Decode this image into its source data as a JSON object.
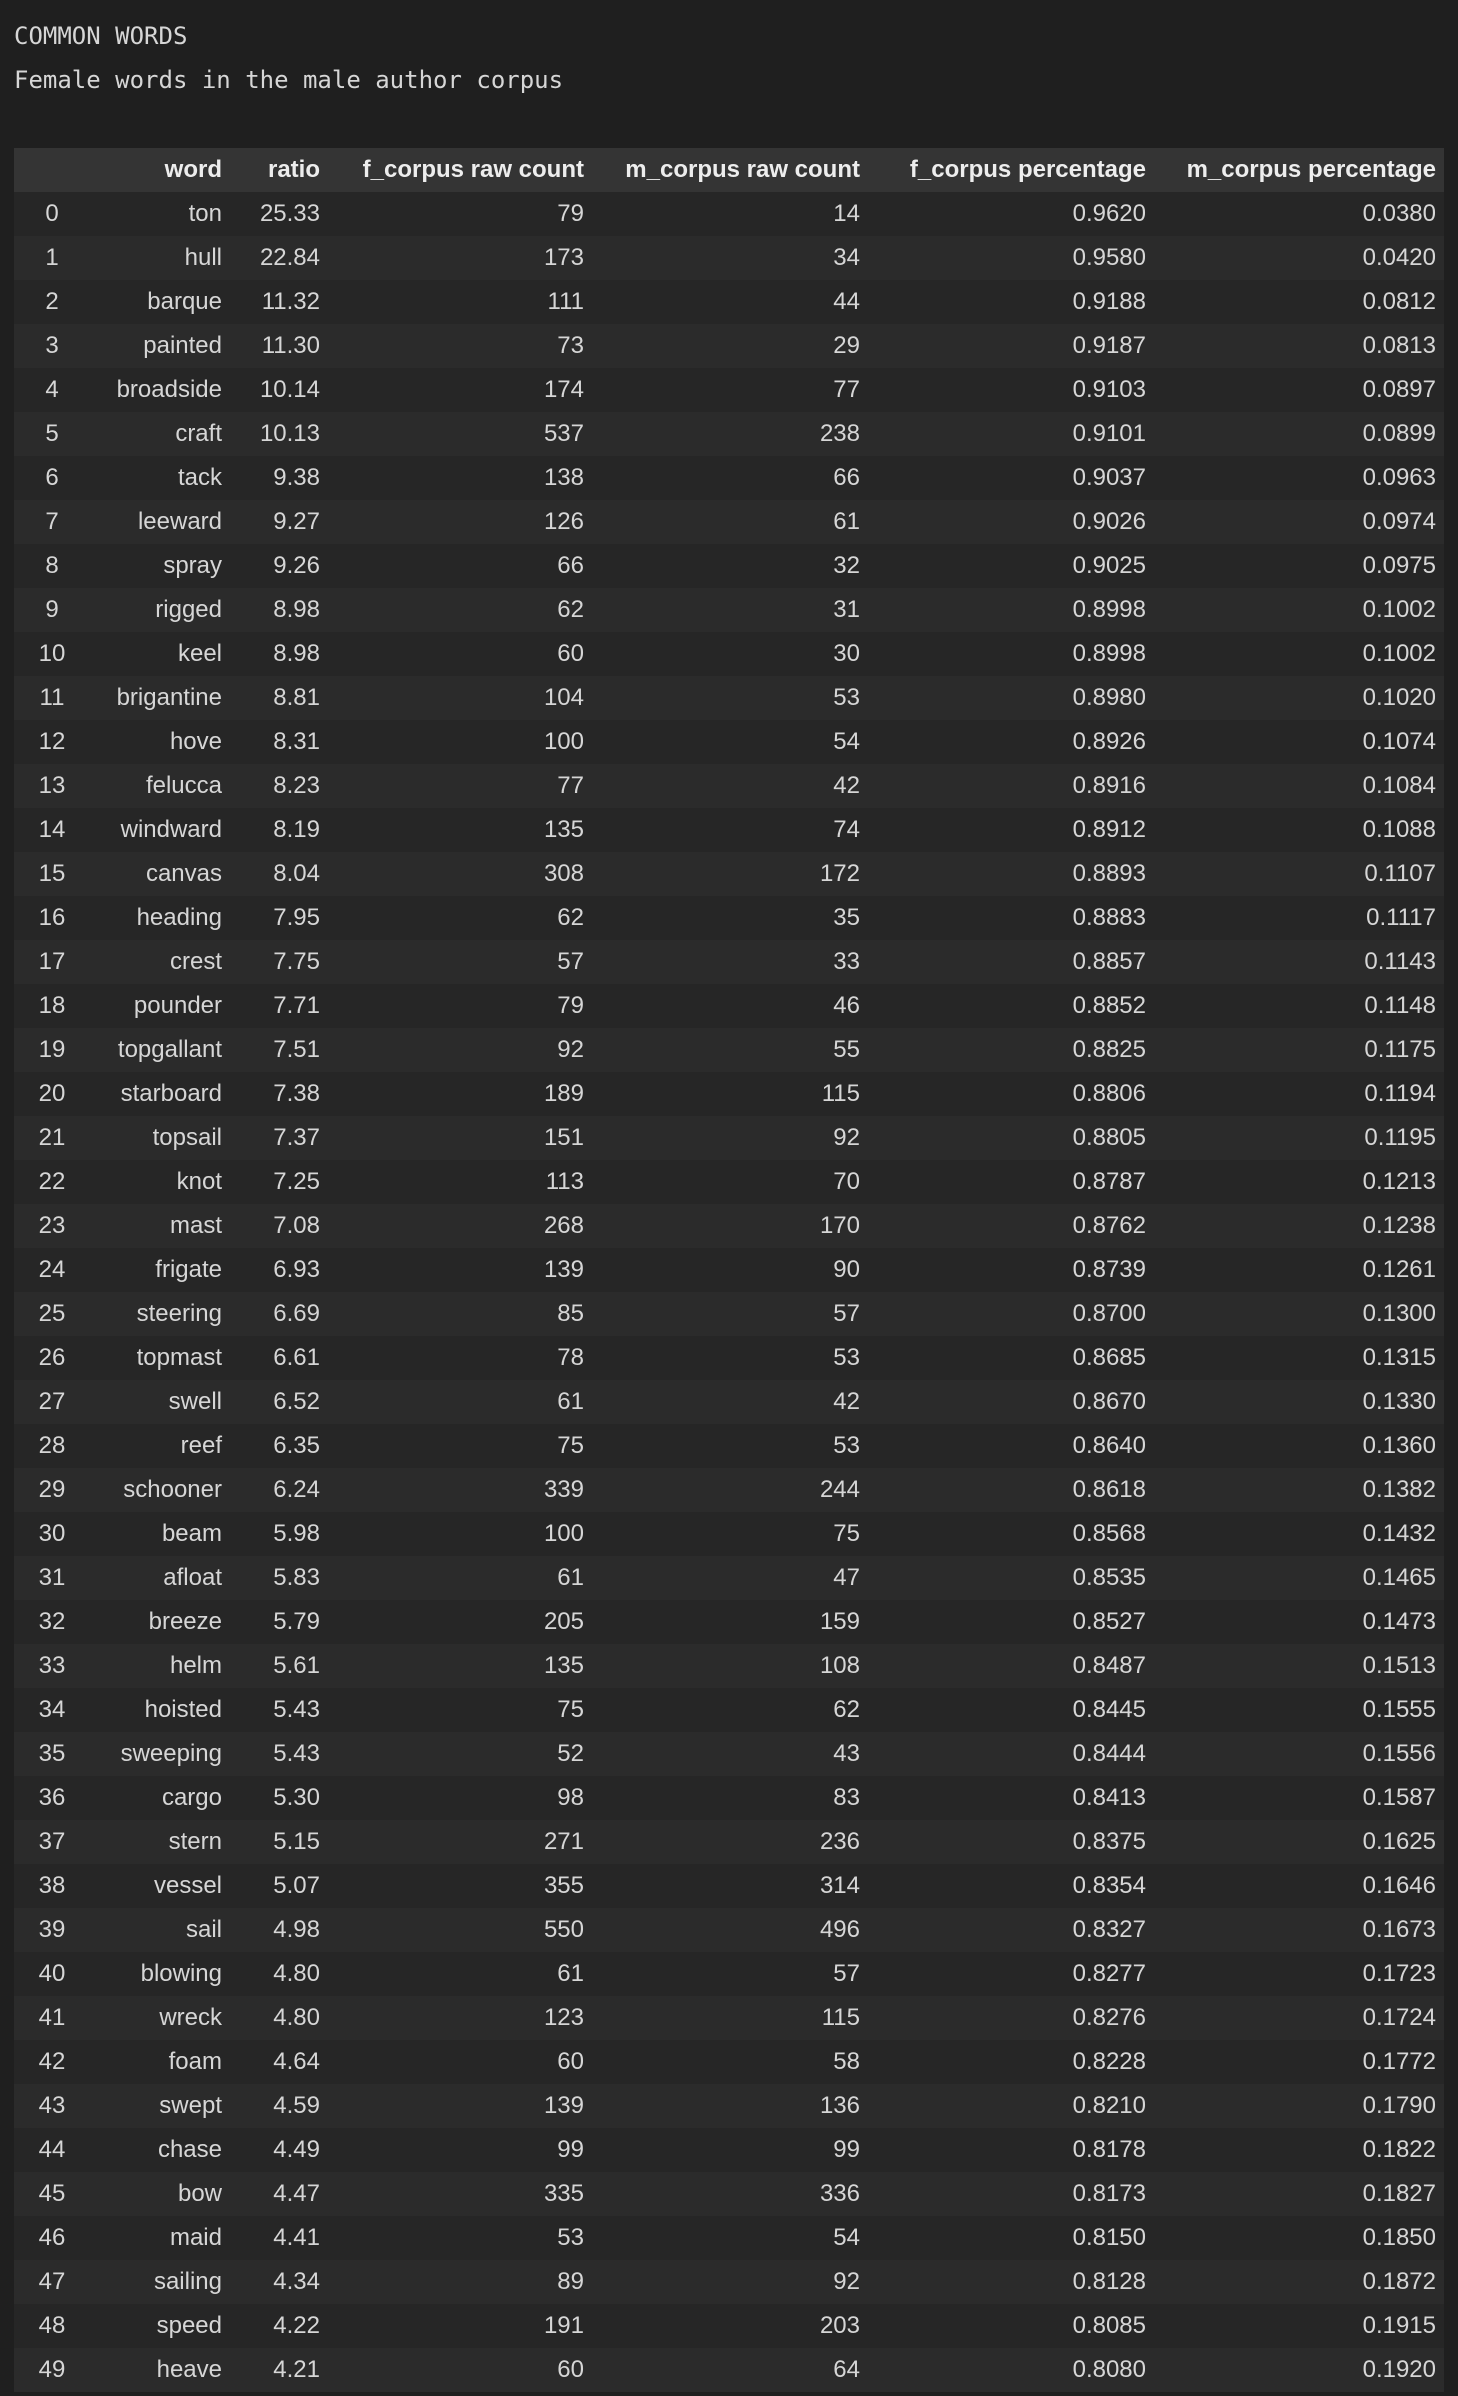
{
  "output": {
    "title": "COMMON WORDS",
    "subtitle": "Female words in the male author corpus"
  },
  "table": {
    "index_header": "",
    "columns": [
      "word",
      "ratio",
      "f_corpus raw count",
      "m_corpus raw count",
      "f_corpus percentage",
      "m_corpus percentage"
    ],
    "rows": [
      [
        "0",
        "ton",
        "25.33",
        "79",
        "14",
        "0.9620",
        "0.0380"
      ],
      [
        "1",
        "hull",
        "22.84",
        "173",
        "34",
        "0.9580",
        "0.0420"
      ],
      [
        "2",
        "barque",
        "11.32",
        "111",
        "44",
        "0.9188",
        "0.0812"
      ],
      [
        "3",
        "painted",
        "11.30",
        "73",
        "29",
        "0.9187",
        "0.0813"
      ],
      [
        "4",
        "broadside",
        "10.14",
        "174",
        "77",
        "0.9103",
        "0.0897"
      ],
      [
        "5",
        "craft",
        "10.13",
        "537",
        "238",
        "0.9101",
        "0.0899"
      ],
      [
        "6",
        "tack",
        "9.38",
        "138",
        "66",
        "0.9037",
        "0.0963"
      ],
      [
        "7",
        "leeward",
        "9.27",
        "126",
        "61",
        "0.9026",
        "0.0974"
      ],
      [
        "8",
        "spray",
        "9.26",
        "66",
        "32",
        "0.9025",
        "0.0975"
      ],
      [
        "9",
        "rigged",
        "8.98",
        "62",
        "31",
        "0.8998",
        "0.1002"
      ],
      [
        "10",
        "keel",
        "8.98",
        "60",
        "30",
        "0.8998",
        "0.1002"
      ],
      [
        "11",
        "brigantine",
        "8.81",
        "104",
        "53",
        "0.8980",
        "0.1020"
      ],
      [
        "12",
        "hove",
        "8.31",
        "100",
        "54",
        "0.8926",
        "0.1074"
      ],
      [
        "13",
        "felucca",
        "8.23",
        "77",
        "42",
        "0.8916",
        "0.1084"
      ],
      [
        "14",
        "windward",
        "8.19",
        "135",
        "74",
        "0.8912",
        "0.1088"
      ],
      [
        "15",
        "canvas",
        "8.04",
        "308",
        "172",
        "0.8893",
        "0.1107"
      ],
      [
        "16",
        "heading",
        "7.95",
        "62",
        "35",
        "0.8883",
        "0.1117"
      ],
      [
        "17",
        "crest",
        "7.75",
        "57",
        "33",
        "0.8857",
        "0.1143"
      ],
      [
        "18",
        "pounder",
        "7.71",
        "79",
        "46",
        "0.8852",
        "0.1148"
      ],
      [
        "19",
        "topgallant",
        "7.51",
        "92",
        "55",
        "0.8825",
        "0.1175"
      ],
      [
        "20",
        "starboard",
        "7.38",
        "189",
        "115",
        "0.8806",
        "0.1194"
      ],
      [
        "21",
        "topsail",
        "7.37",
        "151",
        "92",
        "0.8805",
        "0.1195"
      ],
      [
        "22",
        "knot",
        "7.25",
        "113",
        "70",
        "0.8787",
        "0.1213"
      ],
      [
        "23",
        "mast",
        "7.08",
        "268",
        "170",
        "0.8762",
        "0.1238"
      ],
      [
        "24",
        "frigate",
        "6.93",
        "139",
        "90",
        "0.8739",
        "0.1261"
      ],
      [
        "25",
        "steering",
        "6.69",
        "85",
        "57",
        "0.8700",
        "0.1300"
      ],
      [
        "26",
        "topmast",
        "6.61",
        "78",
        "53",
        "0.8685",
        "0.1315"
      ],
      [
        "27",
        "swell",
        "6.52",
        "61",
        "42",
        "0.8670",
        "0.1330"
      ],
      [
        "28",
        "reef",
        "6.35",
        "75",
        "53",
        "0.8640",
        "0.1360"
      ],
      [
        "29",
        "schooner",
        "6.24",
        "339",
        "244",
        "0.8618",
        "0.1382"
      ],
      [
        "30",
        "beam",
        "5.98",
        "100",
        "75",
        "0.8568",
        "0.1432"
      ],
      [
        "31",
        "afloat",
        "5.83",
        "61",
        "47",
        "0.8535",
        "0.1465"
      ],
      [
        "32",
        "breeze",
        "5.79",
        "205",
        "159",
        "0.8527",
        "0.1473"
      ],
      [
        "33",
        "helm",
        "5.61",
        "135",
        "108",
        "0.8487",
        "0.1513"
      ],
      [
        "34",
        "hoisted",
        "5.43",
        "75",
        "62",
        "0.8445",
        "0.1555"
      ],
      [
        "35",
        "sweeping",
        "5.43",
        "52",
        "43",
        "0.8444",
        "0.1556"
      ],
      [
        "36",
        "cargo",
        "5.30",
        "98",
        "83",
        "0.8413",
        "0.1587"
      ],
      [
        "37",
        "stern",
        "5.15",
        "271",
        "236",
        "0.8375",
        "0.1625"
      ],
      [
        "38",
        "vessel",
        "5.07",
        "355",
        "314",
        "0.8354",
        "0.1646"
      ],
      [
        "39",
        "sail",
        "4.98",
        "550",
        "496",
        "0.8327",
        "0.1673"
      ],
      [
        "40",
        "blowing",
        "4.80",
        "61",
        "57",
        "0.8277",
        "0.1723"
      ],
      [
        "41",
        "wreck",
        "4.80",
        "123",
        "115",
        "0.8276",
        "0.1724"
      ],
      [
        "42",
        "foam",
        "4.64",
        "60",
        "58",
        "0.8228",
        "0.1772"
      ],
      [
        "43",
        "swept",
        "4.59",
        "139",
        "136",
        "0.8210",
        "0.1790"
      ],
      [
        "44",
        "chase",
        "4.49",
        "99",
        "99",
        "0.8178",
        "0.1822"
      ],
      [
        "45",
        "bow",
        "4.47",
        "335",
        "336",
        "0.8173",
        "0.1827"
      ],
      [
        "46",
        "maid",
        "4.41",
        "53",
        "54",
        "0.8150",
        "0.1850"
      ],
      [
        "47",
        "sailing",
        "4.34",
        "89",
        "92",
        "0.8128",
        "0.1872"
      ],
      [
        "48",
        "speed",
        "4.22",
        "191",
        "203",
        "0.8085",
        "0.1915"
      ],
      [
        "49",
        "heave",
        "4.21",
        "60",
        "64",
        "0.8080",
        "0.1920"
      ]
    ]
  }
}
